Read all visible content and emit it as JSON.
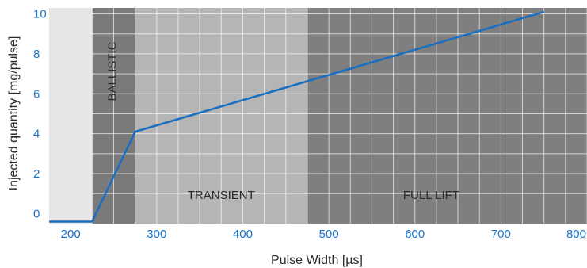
{
  "chart_data": {
    "type": "line",
    "xlabel": "Pulse Width [µs]",
    "ylabel": "Injected quantity [mg/pulse]",
    "xlim": [
      175,
      800
    ],
    "ylim": [
      -0.5,
      10.3
    ],
    "x_ticks": [
      200,
      300,
      400,
      500,
      600,
      700,
      800
    ],
    "y_ticks": [
      0,
      2,
      4,
      6,
      8,
      10
    ],
    "x_tick_labels": [
      "200",
      "300",
      "400",
      "500",
      "600",
      "700",
      "800"
    ],
    "y_tick_labels": [
      "0",
      "2",
      "4",
      "6",
      "8",
      "10"
    ],
    "grid": true,
    "regions": [
      {
        "label": "",
        "x_start": 175,
        "x_end": 225,
        "color": "#e6e6e8"
      },
      {
        "label": "BALLISTIC",
        "x_start": 225,
        "x_end": 275,
        "color": "#7a7a7a"
      },
      {
        "label": "TRANSIENT",
        "x_start": 275,
        "x_end": 475,
        "color": "#b5b5b5"
      },
      {
        "label": "FULL LIFT",
        "x_start": 475,
        "x_end": 800,
        "color": "#7f7f7f"
      }
    ],
    "series": [
      {
        "color": "#1a6fc0",
        "x": [
          175,
          225,
          275,
          750
        ],
        "y": [
          -0.4,
          -0.4,
          4.1,
          10.1
        ]
      }
    ]
  }
}
